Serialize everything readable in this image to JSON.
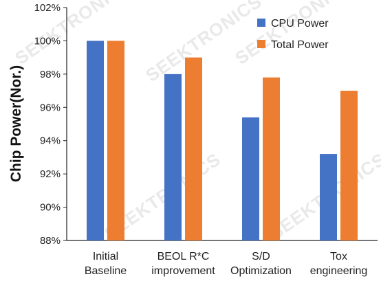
{
  "chart_data": {
    "type": "bar",
    "title": "",
    "xlabel": "",
    "ylabel": "Chip Power(Nor.)",
    "ylim": [
      88,
      102
    ],
    "ytick_values": [
      88,
      90,
      92,
      94,
      96,
      98,
      100,
      102
    ],
    "ytick_labels": [
      "88%",
      "90%",
      "92%",
      "94%",
      "96%",
      "98%",
      "100%",
      "102%"
    ],
    "grid": false,
    "legend_position": "top-right",
    "categories": [
      [
        "Initial",
        "Baseline"
      ],
      [
        "BEOL R*C",
        "improvement"
      ],
      [
        "S/D",
        "Optimization"
      ],
      [
        "Tox",
        "engineering"
      ]
    ],
    "series": [
      {
        "name": "CPU Power",
        "color": "#4472C4",
        "values": [
          100.0,
          98.0,
          95.4,
          93.2
        ]
      },
      {
        "name": "Total Power",
        "color": "#ED7D31",
        "values": [
          100.0,
          99.0,
          97.8,
          97.0
        ]
      }
    ]
  },
  "watermark": "SEEKTRONICS"
}
